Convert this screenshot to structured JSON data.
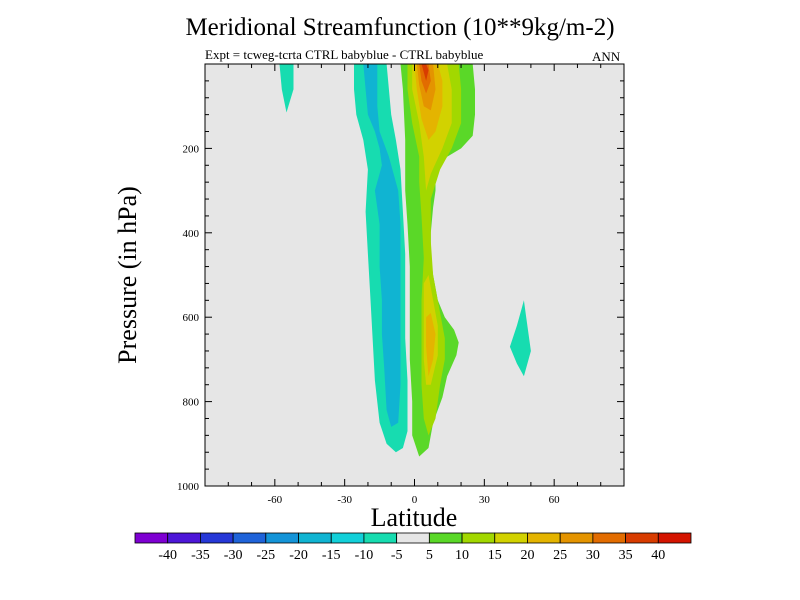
{
  "chart_data": {
    "type": "heatmap",
    "title": "Meridional Streamfunction (10**9kg/m-2)",
    "subtitle": "Expt = tcweg-tcrta CTRL babyblue - CTRL babyblue",
    "season": "ANN",
    "xlabel": "Latitude",
    "ylabel": "Pressure (in hPa)",
    "xlim": [
      -90,
      90
    ],
    "ylim": [
      1000,
      0
    ],
    "xticks": [
      -60,
      -30,
      0,
      30,
      60
    ],
    "yticks": [
      200,
      400,
      600,
      800,
      1000
    ],
    "xtick_labels": [
      "-60",
      "-30",
      "0",
      "30",
      "60"
    ],
    "ytick_labels": [
      "200",
      "400",
      "600",
      "800",
      "1000"
    ],
    "background_color": "#e6e6e6",
    "colorbar": {
      "labels": [
        "-40",
        "-35",
        "-30",
        "-25",
        "-20",
        "-15",
        "-10",
        "-5",
        "5",
        "10",
        "15",
        "20",
        "25",
        "30",
        "35",
        "40"
      ],
      "colors": [
        "#7e00d2",
        "#4d16d8",
        "#2638d7",
        "#1f63d9",
        "#1494d8",
        "#10b4d2",
        "#12d0d9",
        "#17dcb0",
        "#e6e6e6",
        "#5ad828",
        "#a2d800",
        "#d2d200",
        "#e4b400",
        "#e49400",
        "#e26c00",
        "#d83c00",
        "#d41400"
      ]
    },
    "contours": [
      {
        "value": 5,
        "color": "#5ad828",
        "points": [
          [
            -6,
            0
          ],
          [
            -5,
            60
          ],
          [
            -4,
            180
          ],
          [
            -4,
            300
          ],
          [
            -3,
            380
          ],
          [
            -2,
            480
          ],
          [
            -2,
            600
          ],
          [
            -2,
            700
          ],
          [
            -1,
            800
          ],
          [
            -1,
            880
          ],
          [
            2,
            930
          ],
          [
            6,
            910
          ],
          [
            8,
            850
          ],
          [
            12,
            790
          ],
          [
            14,
            740
          ],
          [
            18,
            690
          ],
          [
            19,
            660
          ],
          [
            17,
            630
          ],
          [
            13,
            600
          ],
          [
            10,
            560
          ],
          [
            8,
            500
          ],
          [
            7,
            460
          ],
          [
            7,
            400
          ],
          [
            8,
            340
          ],
          [
            9,
            300
          ],
          [
            9,
            260
          ],
          [
            14,
            220
          ],
          [
            20,
            200
          ],
          [
            25,
            170
          ],
          [
            26,
            120
          ],
          [
            26,
            60
          ],
          [
            25,
            0
          ]
        ]
      },
      {
        "value": 10,
        "color": "#a2d800",
        "points": [
          [
            -3,
            0
          ],
          [
            -3,
            60
          ],
          [
            -1,
            140
          ],
          [
            2,
            220
          ],
          [
            2,
            280
          ],
          [
            3,
            360
          ],
          [
            4,
            460
          ],
          [
            3,
            560
          ],
          [
            3,
            660
          ],
          [
            3,
            760
          ],
          [
            4,
            840
          ],
          [
            6,
            880
          ],
          [
            9,
            840
          ],
          [
            11,
            760
          ],
          [
            13,
            700
          ],
          [
            13,
            650
          ],
          [
            11,
            590
          ],
          [
            8,
            500
          ],
          [
            7,
            420
          ],
          [
            7,
            320
          ],
          [
            11,
            250
          ],
          [
            16,
            200
          ],
          [
            20,
            140
          ],
          [
            20,
            60
          ],
          [
            19,
            0
          ]
        ]
      },
      {
        "value": 15,
        "color": "#d2d200",
        "points": [
          [
            -1,
            0
          ],
          [
            -1,
            60
          ],
          [
            2,
            140
          ],
          [
            4,
            220
          ],
          [
            5,
            300
          ],
          [
            7,
            260
          ],
          [
            12,
            200
          ],
          [
            16,
            140
          ],
          [
            16,
            60
          ],
          [
            14,
            0
          ]
        ]
      },
      {
        "value": 15,
        "color": "#d2d200",
        "points": [
          [
            4,
            520
          ],
          [
            4,
            600
          ],
          [
            4,
            700
          ],
          [
            5,
            760
          ],
          [
            7,
            760
          ],
          [
            10,
            690
          ],
          [
            10,
            620
          ],
          [
            8,
            560
          ],
          [
            6,
            500
          ]
        ]
      },
      {
        "value": 20,
        "color": "#e4b400",
        "points": [
          [
            0,
            0
          ],
          [
            1,
            60
          ],
          [
            3,
            130
          ],
          [
            6,
            180
          ],
          [
            9,
            160
          ],
          [
            12,
            100
          ],
          [
            12,
            40
          ],
          [
            10,
            0
          ]
        ]
      },
      {
        "value": 20,
        "color": "#e4b400",
        "points": [
          [
            5,
            600
          ],
          [
            5,
            670
          ],
          [
            6,
            740
          ],
          [
            8,
            700
          ],
          [
            9,
            640
          ],
          [
            7,
            590
          ]
        ]
      },
      {
        "value": 25,
        "color": "#e49400",
        "points": [
          [
            1,
            0
          ],
          [
            2,
            50
          ],
          [
            4,
            100
          ],
          [
            7,
            110
          ],
          [
            9,
            60
          ],
          [
            8,
            0
          ]
        ]
      },
      {
        "value": 30,
        "color": "#e26c00",
        "points": [
          [
            2,
            0
          ],
          [
            3,
            40
          ],
          [
            5,
            70
          ],
          [
            7,
            40
          ],
          [
            6,
            0
          ]
        ]
      },
      {
        "value": 35,
        "color": "#d83c00",
        "points": [
          [
            3,
            0
          ],
          [
            4,
            20
          ],
          [
            5,
            40
          ],
          [
            6,
            15
          ],
          [
            5,
            0
          ]
        ]
      },
      {
        "value": -5,
        "color": "#17dcb0",
        "points": [
          [
            -26,
            0
          ],
          [
            -26,
            60
          ],
          [
            -25,
            120
          ],
          [
            -22,
            180
          ],
          [
            -20,
            250
          ],
          [
            -21,
            350
          ],
          [
            -20,
            450
          ],
          [
            -19,
            550
          ],
          [
            -18,
            650
          ],
          [
            -17,
            750
          ],
          [
            -15,
            850
          ],
          [
            -12,
            900
          ],
          [
            -8,
            920
          ],
          [
            -5,
            910
          ],
          [
            -3,
            870
          ],
          [
            -3,
            750
          ],
          [
            -4,
            650
          ],
          [
            -4,
            550
          ],
          [
            -4,
            450
          ],
          [
            -5,
            350
          ],
          [
            -6,
            250
          ],
          [
            -8,
            180
          ],
          [
            -10,
            120
          ],
          [
            -11,
            60
          ],
          [
            -12,
            0
          ]
        ]
      },
      {
        "value": -10,
        "color": "#10b4d2",
        "points": [
          [
            -22,
            0
          ],
          [
            -21,
            60
          ],
          [
            -20,
            120
          ],
          [
            -17,
            160
          ],
          [
            -15,
            200
          ],
          [
            -14,
            240
          ],
          [
            -17,
            300
          ],
          [
            -15,
            380
          ],
          [
            -15,
            480
          ],
          [
            -14,
            560
          ],
          [
            -14,
            640
          ],
          [
            -13,
            720
          ],
          [
            -12,
            820
          ],
          [
            -10,
            860
          ],
          [
            -7,
            850
          ],
          [
            -6,
            760
          ],
          [
            -6,
            660
          ],
          [
            -6,
            560
          ],
          [
            -6,
            460
          ],
          [
            -6,
            380
          ],
          [
            -7,
            300
          ],
          [
            -11,
            220
          ],
          [
            -15,
            160
          ],
          [
            -16,
            100
          ],
          [
            -16,
            40
          ],
          [
            -16,
            0
          ]
        ]
      },
      {
        "value": -10,
        "color": "#17dcb0",
        "points": [
          [
            -58,
            0
          ],
          [
            -57,
            60
          ],
          [
            -55,
            115
          ],
          [
            -52,
            60
          ],
          [
            -52,
            0
          ]
        ]
      },
      {
        "value": -10,
        "color": "#17dcb0",
        "points": [
          [
            46,
            580
          ],
          [
            44,
            620
          ],
          [
            41,
            670
          ],
          [
            44,
            710
          ],
          [
            47,
            740
          ],
          [
            50,
            680
          ],
          [
            48,
            600
          ],
          [
            47,
            560
          ]
        ]
      }
    ]
  }
}
